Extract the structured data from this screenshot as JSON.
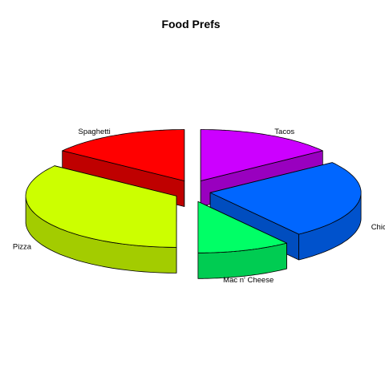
{
  "chart_data": {
    "type": "pie",
    "variant": "3d-exploded",
    "title": "Food Prefs",
    "slices": [
      {
        "label": "Tacos",
        "value": 15,
        "color": "#CC00FF"
      },
      {
        "label": "Chicken Nugge",
        "value": 25,
        "color": "#0066FF"
      },
      {
        "label": "Mac n' Cheese",
        "value": 10,
        "color": "#00FF66"
      },
      {
        "label": "Pizza",
        "value": 35,
        "color": "#CCFF00"
      },
      {
        "label": "Spaghetti",
        "value": 15,
        "color": "#FF0000"
      }
    ],
    "start_angle_deg": 90,
    "direction": "clockwise",
    "legend": "none"
  }
}
